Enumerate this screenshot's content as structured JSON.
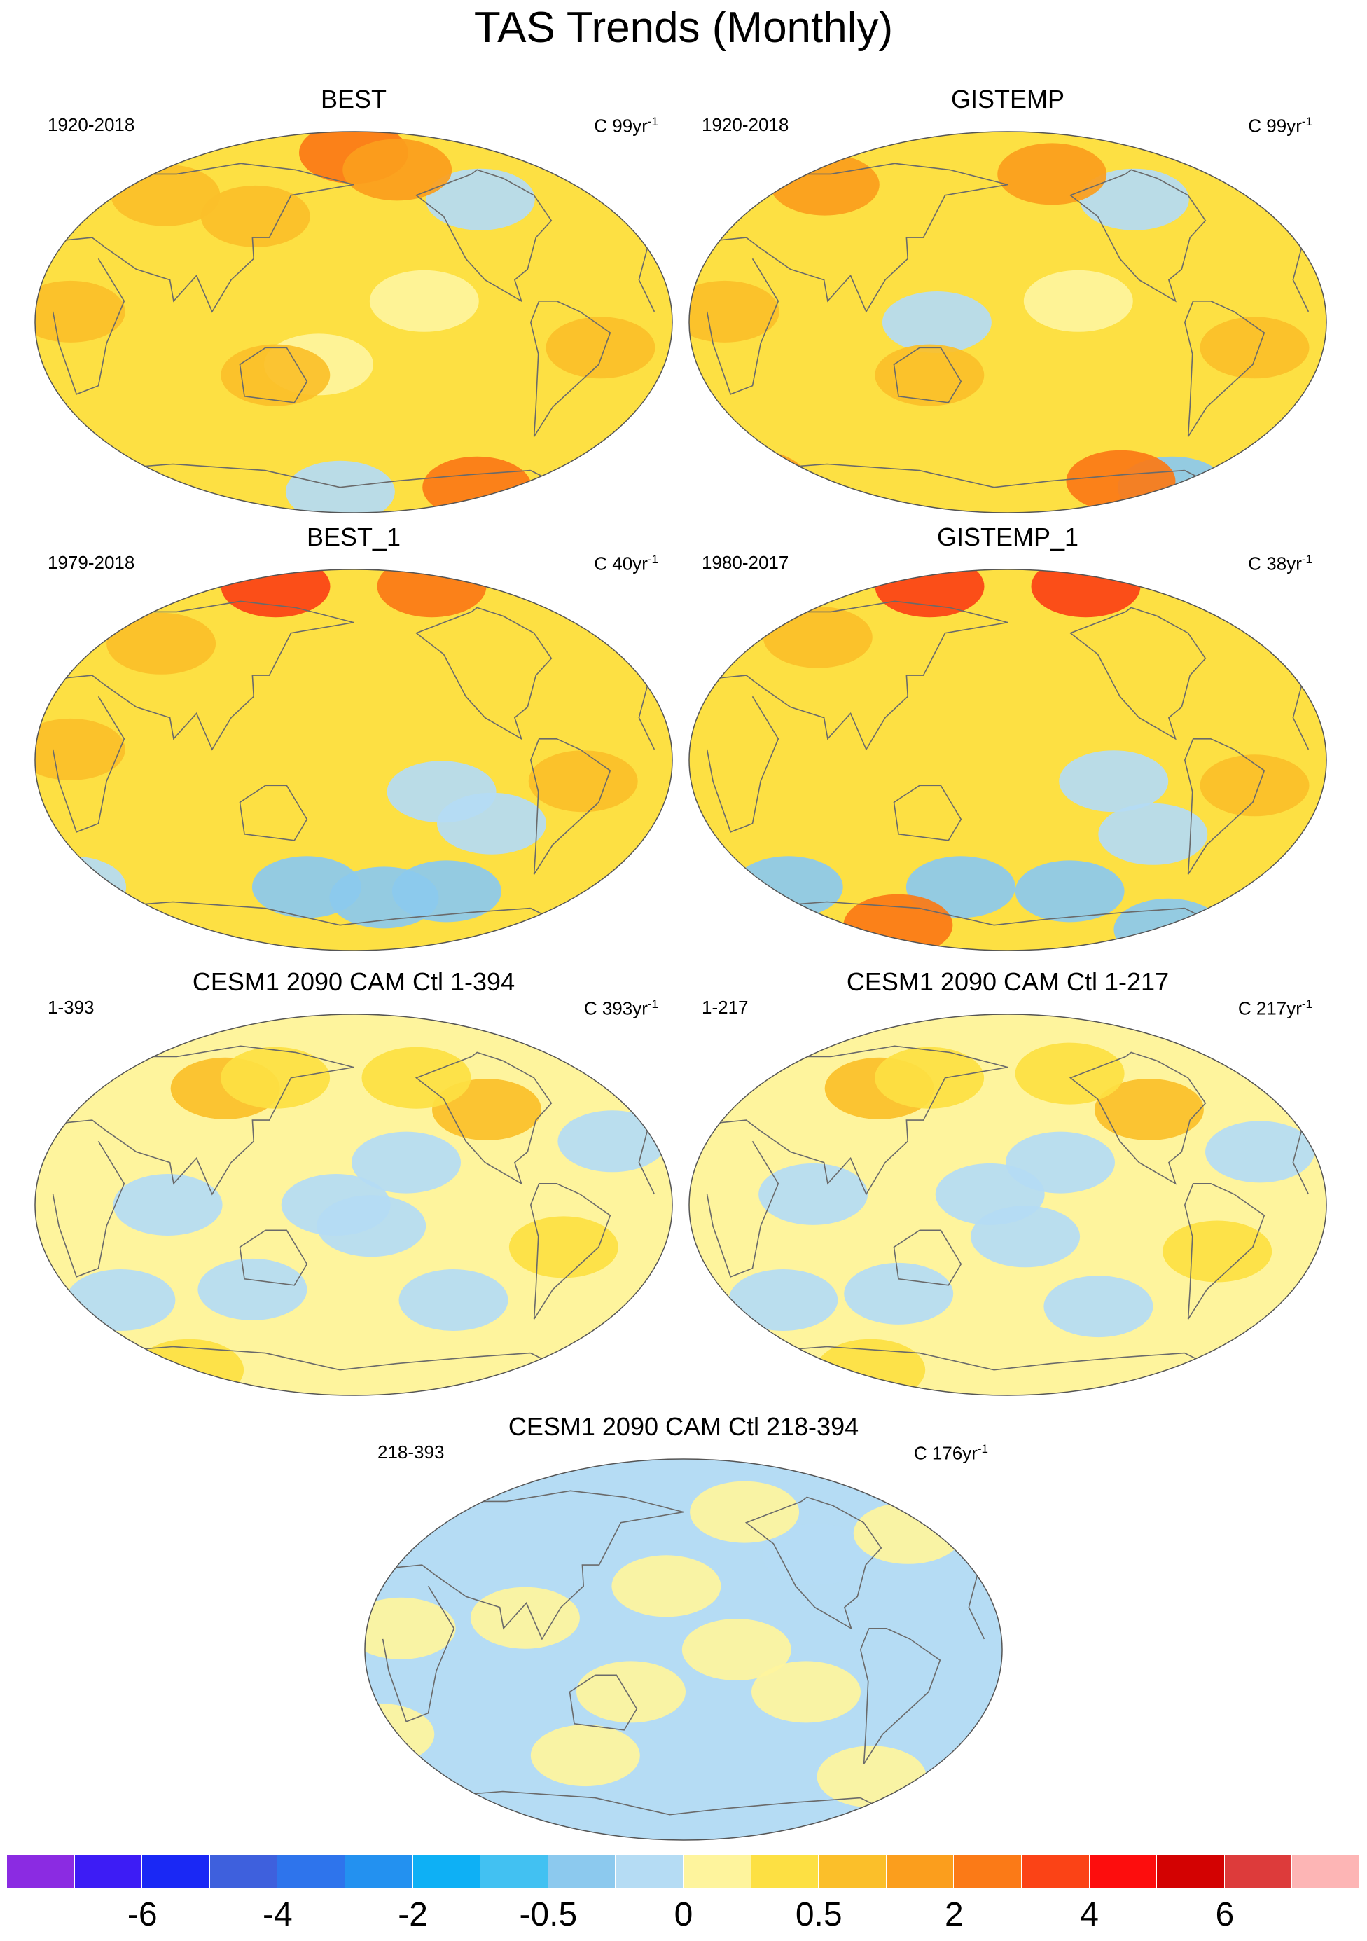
{
  "figure": {
    "title": "TAS Trends (Monthly)"
  },
  "chart_data": [
    {
      "type": "heatmap",
      "title": "BEST",
      "period": "1920-2018",
      "units_prefix": "C",
      "units_value": "99yr",
      "units_exp": "-1",
      "base_level": 1,
      "anomalies": [
        {
          "lon": -100,
          "lat": 58,
          "level": -1
        },
        {
          "lon": 180,
          "lat": 80,
          "level": 4
        },
        {
          "lon": -150,
          "lat": 72,
          "level": 3
        },
        {
          "lon": 60,
          "lat": 60,
          "level": 2
        },
        {
          "lon": 120,
          "lat": 50,
          "level": 2
        },
        {
          "lon": -140,
          "lat": 10,
          "level": 0
        },
        {
          "lon": 160,
          "lat": -20,
          "level": 0
        },
        {
          "lon": -90,
          "lat": -78,
          "level": 4
        },
        {
          "lon": 170,
          "lat": -80,
          "level": -1
        },
        {
          "lon": -40,
          "lat": -12,
          "level": 2
        },
        {
          "lon": 20,
          "lat": 5,
          "level": 2
        },
        {
          "lon": 135,
          "lat": -25,
          "level": 2
        }
      ]
    },
    {
      "type": "heatmap",
      "title": "GISTEMP",
      "period": "1920-2018",
      "units_prefix": "C",
      "units_value": "99yr",
      "units_exp": "-1",
      "base_level": 1,
      "anomalies": [
        {
          "lon": -100,
          "lat": 58,
          "level": -1
        },
        {
          "lon": 60,
          "lat": 65,
          "level": 3
        },
        {
          "lon": -150,
          "lat": 70,
          "level": 3
        },
        {
          "lon": -140,
          "lat": 10,
          "level": 0
        },
        {
          "lon": -60,
          "lat": -78,
          "level": -2
        },
        {
          "lon": -100,
          "lat": -75,
          "level": 4
        },
        {
          "lon": 0,
          "lat": -75,
          "level": 3
        },
        {
          "lon": 140,
          "lat": 0,
          "level": -1
        },
        {
          "lon": -40,
          "lat": -12,
          "level": 2
        },
        {
          "lon": 20,
          "lat": 5,
          "level": 2
        },
        {
          "lon": 135,
          "lat": -25,
          "level": 2
        }
      ]
    },
    {
      "type": "heatmap",
      "title": "BEST_1",
      "period": "1979-2018",
      "units_prefix": "C",
      "units_value": "40yr",
      "units_exp": "-1",
      "base_level": 1,
      "anomalies": [
        {
          "lon": 0,
          "lat": 82,
          "level": 5
        },
        {
          "lon": 120,
          "lat": 82,
          "level": 5
        },
        {
          "lon": -120,
          "lat": 82,
          "level": 4
        },
        {
          "lon": 60,
          "lat": 55,
          "level": 2
        },
        {
          "lon": -130,
          "lat": -15,
          "level": -1
        },
        {
          "lon": -100,
          "lat": -30,
          "level": -1
        },
        {
          "lon": 150,
          "lat": -60,
          "level": -2
        },
        {
          "lon": -120,
          "lat": -62,
          "level": -2
        },
        {
          "lon": 0,
          "lat": -60,
          "level": -1
        },
        {
          "lon": -160,
          "lat": -65,
          "level": -2
        },
        {
          "lon": 20,
          "lat": 5,
          "level": 2
        },
        {
          "lon": -50,
          "lat": -10,
          "level": 2
        }
      ]
    },
    {
      "type": "heatmap",
      "title": "GISTEMP_1",
      "period": "1980-2017",
      "units_prefix": "C",
      "units_value": "38yr",
      "units_exp": "-1",
      "base_level": 1,
      "anomalies": [
        {
          "lon": 0,
          "lat": 82,
          "level": 5
        },
        {
          "lon": 120,
          "lat": 82,
          "level": 5
        },
        {
          "lon": -120,
          "lat": 82,
          "level": 5
        },
        {
          "lon": 60,
          "lat": 58,
          "level": 2
        },
        {
          "lon": -120,
          "lat": -10,
          "level": -1
        },
        {
          "lon": -95,
          "lat": -35,
          "level": -1
        },
        {
          "lon": -140,
          "lat": -62,
          "level": -2
        },
        {
          "lon": 150,
          "lat": -60,
          "level": -2
        },
        {
          "lon": 40,
          "lat": -60,
          "level": -2
        },
        {
          "lon": -60,
          "lat": -80,
          "level": -2
        },
        {
          "lon": 100,
          "lat": -78,
          "level": 4
        },
        {
          "lon": -40,
          "lat": -12,
          "level": 2
        }
      ]
    },
    {
      "type": "heatmap",
      "title": "CESM1 2090 CAM Ctl 1-394",
      "period": "1-393",
      "units_prefix": "C",
      "units_value": "393yr",
      "units_exp": "-1",
      "base_level": 0,
      "anomalies": [
        {
          "lon": 100,
          "lat": 55,
          "level": 2
        },
        {
          "lon": 130,
          "lat": 60,
          "level": 1
        },
        {
          "lon": -100,
          "lat": 45,
          "level": 2
        },
        {
          "lon": -140,
          "lat": 60,
          "level": 1
        },
        {
          "lon": -60,
          "lat": -20,
          "level": 1
        },
        {
          "lon": 60,
          "lat": -78,
          "level": 1
        },
        {
          "lon": -150,
          "lat": 20,
          "level": -1
        },
        {
          "lon": 170,
          "lat": 0,
          "level": -1
        },
        {
          "lon": -30,
          "lat": 30,
          "level": -1
        },
        {
          "lon": 120,
          "lat": -40,
          "level": -1
        },
        {
          "lon": -120,
          "lat": -45,
          "level": -1
        },
        {
          "lon": 40,
          "lat": -45,
          "level": -1
        },
        {
          "lon": -170,
          "lat": -10,
          "level": -1
        },
        {
          "lon": 75,
          "lat": 0,
          "level": -1
        }
      ]
    },
    {
      "type": "heatmap",
      "title": "CESM1 2090 CAM Ctl 1-217",
      "period": "1-217",
      "units_prefix": "C",
      "units_value": "217yr",
      "units_exp": "-1",
      "base_level": 0,
      "anomalies": [
        {
          "lon": 100,
          "lat": 55,
          "level": 2
        },
        {
          "lon": 130,
          "lat": 60,
          "level": 1
        },
        {
          "lon": -95,
          "lat": 45,
          "level": 2
        },
        {
          "lon": -140,
          "lat": 62,
          "level": 1
        },
        {
          "lon": -60,
          "lat": -22,
          "level": 1
        },
        {
          "lon": 80,
          "lat": -78,
          "level": 1
        },
        {
          "lon": -150,
          "lat": 20,
          "level": -1
        },
        {
          "lon": 170,
          "lat": 5,
          "level": -1
        },
        {
          "lon": -35,
          "lat": 25,
          "level": -1
        },
        {
          "lon": 115,
          "lat": -42,
          "level": -1
        },
        {
          "lon": -125,
          "lat": -48,
          "level": -1
        },
        {
          "lon": 45,
          "lat": -45,
          "level": -1
        },
        {
          "lon": -170,
          "lat": -15,
          "level": -1
        },
        {
          "lon": 70,
          "lat": 5,
          "level": -1
        }
      ]
    },
    {
      "type": "heatmap",
      "title": "CESM1 2090 CAM Ctl 218-394",
      "period": "218-393",
      "units_prefix": "C",
      "units_value": "176yr",
      "units_exp": "-1",
      "base_level": -1,
      "anomalies": [
        {
          "lon": -100,
          "lat": 45,
          "level": -1
        },
        {
          "lon": 170,
          "lat": 30,
          "level": 0
        },
        {
          "lon": -150,
          "lat": 0,
          "level": 0
        },
        {
          "lon": 20,
          "lat": 10,
          "level": 0
        },
        {
          "lon": 0,
          "lat": -40,
          "level": 0
        },
        {
          "lon": 120,
          "lat": -50,
          "level": 0
        },
        {
          "lon": -140,
          "lat": 65,
          "level": 0
        },
        {
          "lon": -40,
          "lat": 55,
          "level": 0
        },
        {
          "lon": 150,
          "lat": -20,
          "level": 0
        },
        {
          "lon": -110,
          "lat": -20,
          "level": 0
        },
        {
          "lon": 90,
          "lat": 15,
          "level": 0
        },
        {
          "lon": -60,
          "lat": -60,
          "level": 0
        }
      ]
    }
  ],
  "colorbar": {
    "colors": [
      "#8b2be2",
      "#3d1cf5",
      "#1a28f5",
      "#3e60dd",
      "#2e74ec",
      "#2391f0",
      "#0eb0f5",
      "#42c1f2",
      "#8cc9ee",
      "#b5dcf4",
      "#fef49d",
      "#fde043",
      "#fbbf2a",
      "#fb9e1d",
      "#fb7a17",
      "#fb4316",
      "#fd0d0d",
      "#d30202",
      "#dd3b3b",
      "#fdb5b5"
    ],
    "labels": [
      "-6",
      "-4",
      "-2",
      "-0.5",
      "0",
      "0.5",
      "2",
      "4",
      "6"
    ],
    "label_boundaries": [
      2,
      4,
      6,
      8,
      10,
      12,
      14,
      16,
      18
    ]
  }
}
